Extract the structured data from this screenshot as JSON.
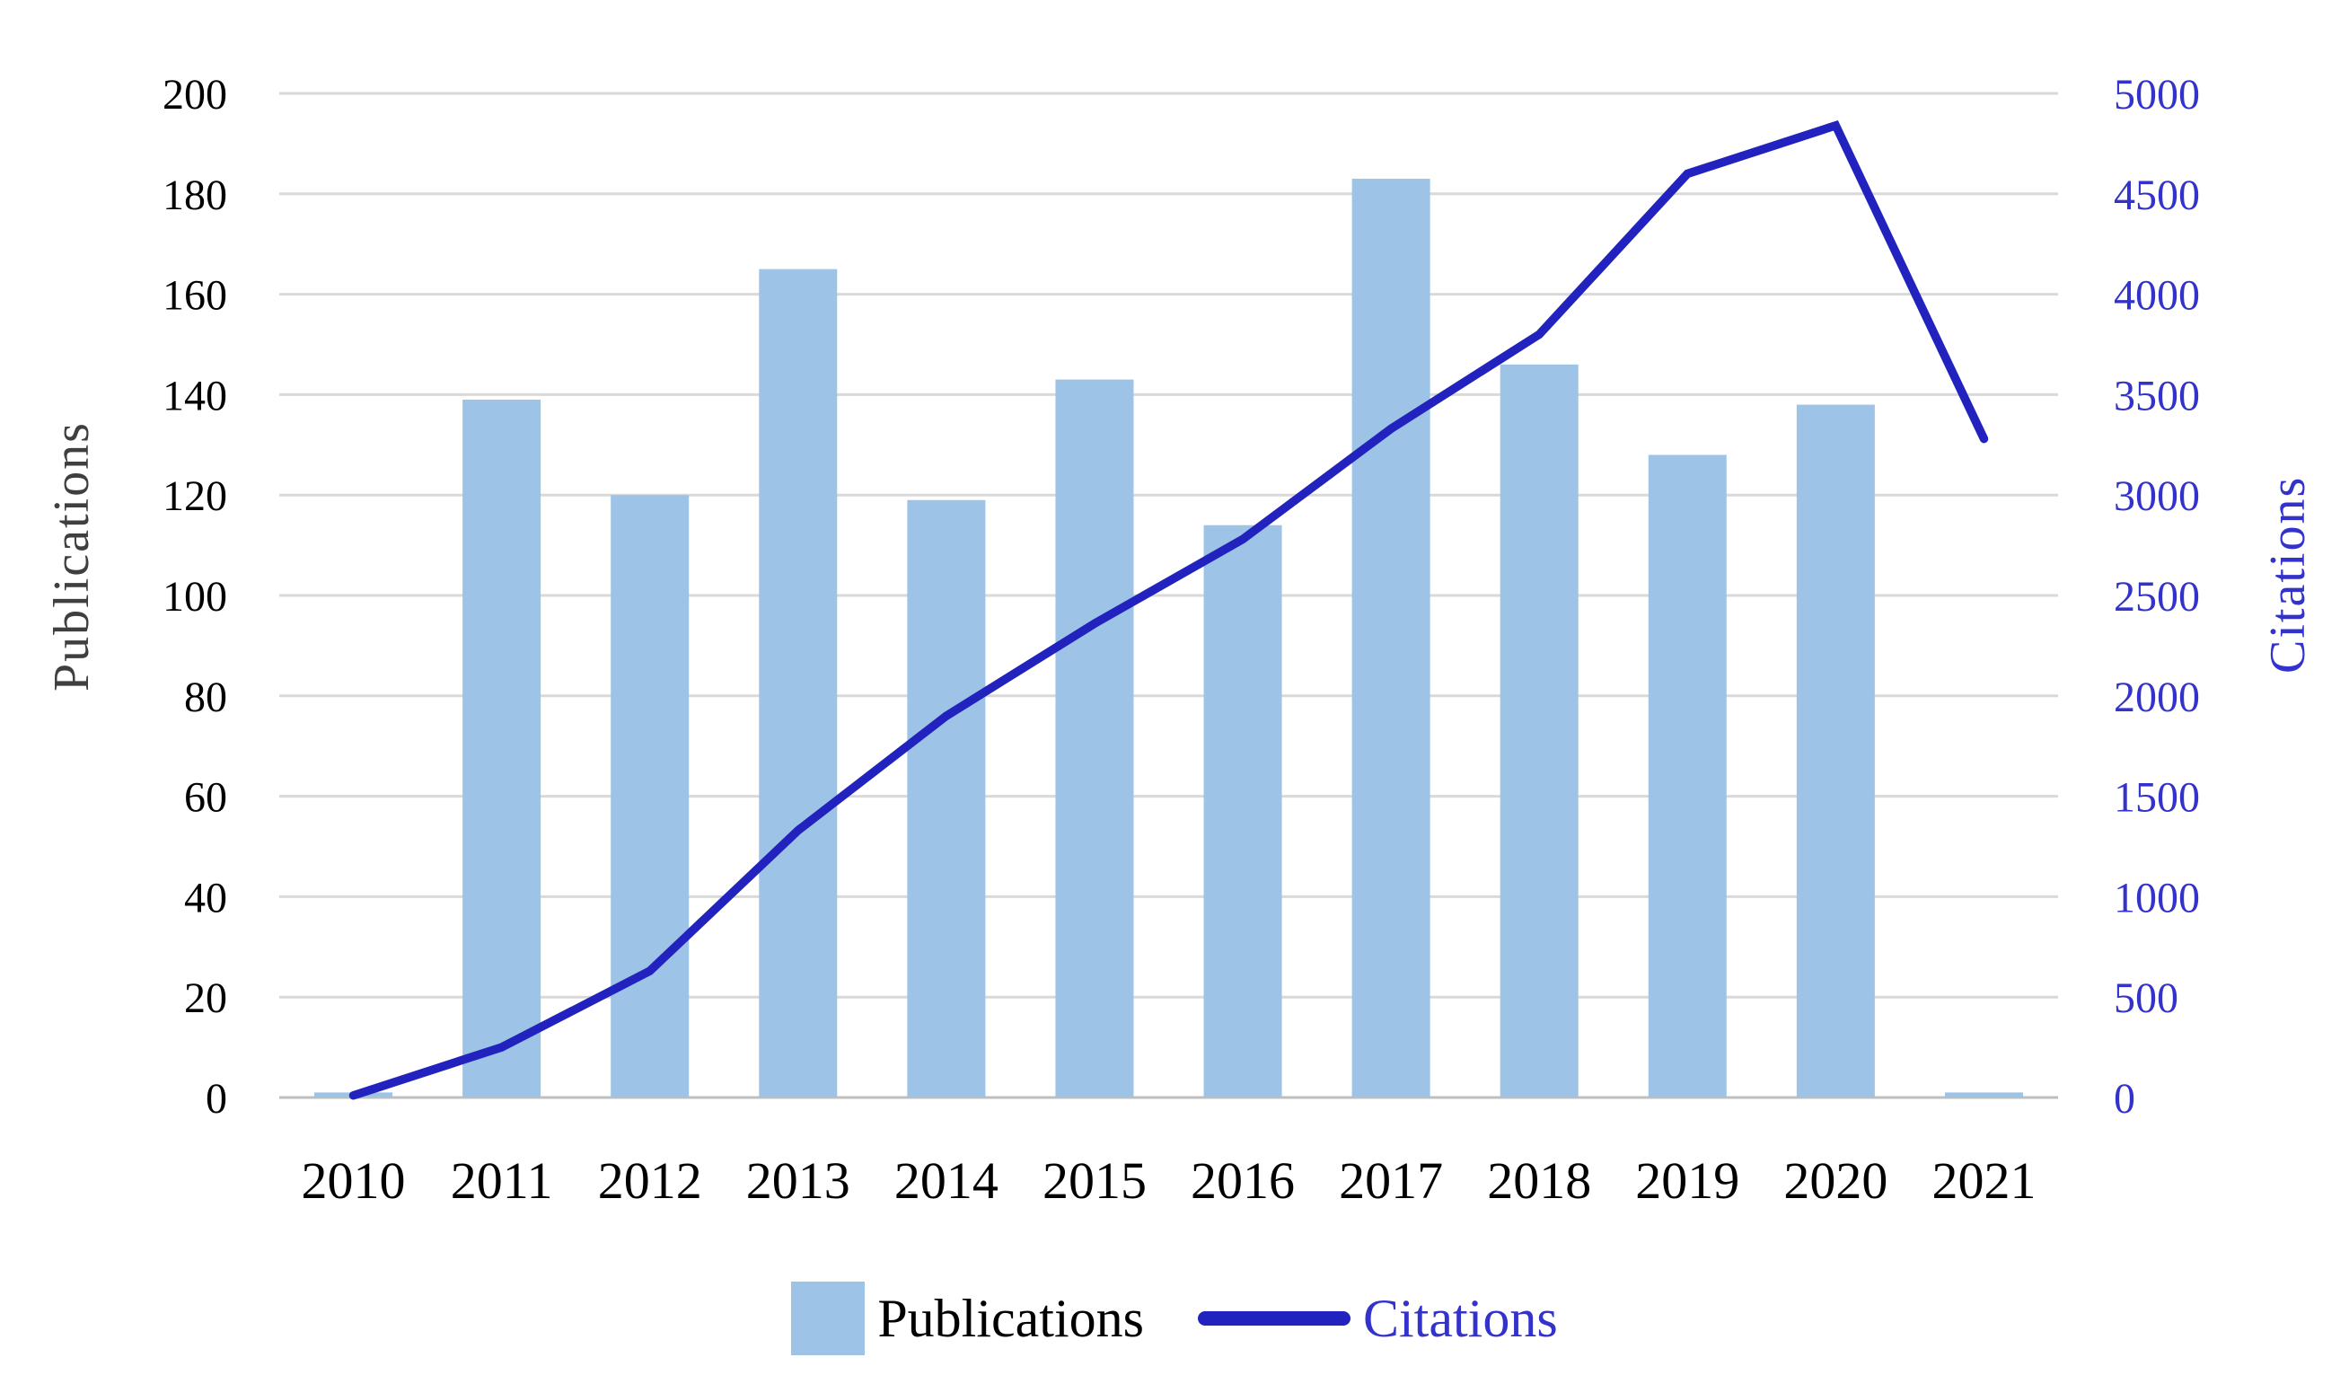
{
  "chart_data": {
    "type": "bar",
    "subtype": "bar+line-dual-axis",
    "categories": [
      "2010",
      "2011",
      "2012",
      "2013",
      "2014",
      "2015",
      "2016",
      "2017",
      "2018",
      "2019",
      "2020",
      "2021"
    ],
    "series": [
      {
        "name": "Publications",
        "type": "bar",
        "axis": "left",
        "values": [
          1,
          139,
          120,
          165,
          119,
          143,
          114,
          183,
          146,
          128,
          138,
          1
        ]
      },
      {
        "name": "Citations",
        "type": "line",
        "axis": "right",
        "values": [
          10,
          250,
          630,
          1330,
          1900,
          2360,
          2780,
          3330,
          3800,
          4600,
          4840,
          3280
        ]
      }
    ],
    "title": "",
    "xlabel": "",
    "ylabel_left": "Publications",
    "ylabel_right": "Citations",
    "y_left": {
      "min": 0,
      "max": 200,
      "step": 20,
      "ticks": [
        "0",
        "20",
        "40",
        "60",
        "80",
        "100",
        "120",
        "140",
        "160",
        "180",
        "200"
      ]
    },
    "y_right": {
      "min": 0,
      "max": 5000,
      "step": 500,
      "ticks": [
        "0",
        "500",
        "1000",
        "1500",
        "2000",
        "2500",
        "3000",
        "3500",
        "4000",
        "4500",
        "5000"
      ]
    },
    "grid": "horizontal",
    "legend_position": "bottom"
  },
  "colors": {
    "bar": "#9DC3E6",
    "line": "#2222BF",
    "left_axis_text": "#000000",
    "right_axis_text": "#3333CC",
    "year_text": "#000000",
    "left_title_text": "#3F3F3F",
    "right_title_text": "#3333CC",
    "gridline": "#D9D9D9",
    "baseline": "#BFBFBF",
    "background": "#FFFFFF"
  }
}
